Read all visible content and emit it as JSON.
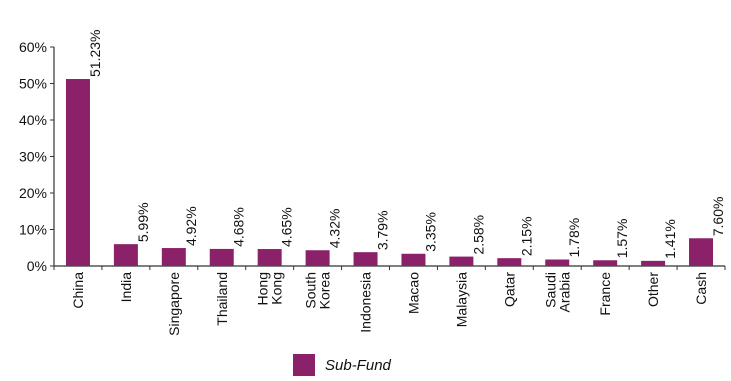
{
  "chart_data": {
    "type": "bar",
    "categories": [
      "China",
      "India",
      "Singapore",
      "Thailand",
      "Hong Kong",
      "South Korea",
      "Indonesia",
      "Macao",
      "Malaysia",
      "Qatar",
      "Saudi Arabia",
      "France",
      "Other",
      "Cash"
    ],
    "category_label_lines": [
      [
        "China"
      ],
      [
        "India"
      ],
      [
        "Singapore"
      ],
      [
        "Thailand"
      ],
      [
        "Hong",
        "Kong"
      ],
      [
        "South",
        "Korea"
      ],
      [
        "Indonesia"
      ],
      [
        "Macao"
      ],
      [
        "Malaysia"
      ],
      [
        "Qatar"
      ],
      [
        "Saudi",
        "Arabia"
      ],
      [
        "France"
      ],
      [
        "Other"
      ],
      [
        "Cash"
      ]
    ],
    "series": [
      {
        "name": "Sub-Fund",
        "values": [
          51.23,
          5.99,
          4.92,
          4.68,
          4.65,
          4.32,
          3.79,
          3.35,
          2.58,
          2.15,
          1.78,
          1.57,
          1.41,
          7.6
        ],
        "labels": [
          "51.23%",
          "5.99%",
          "4.92%",
          "4.68%",
          "4.65%",
          "4.32%",
          "3.79%",
          "3.35%",
          "2.58%",
          "2.15%",
          "1.78%",
          "1.57%",
          "1.41%",
          "7.60%"
        ]
      }
    ],
    "yticks": [
      0,
      10,
      20,
      30,
      40,
      50,
      60
    ],
    "ytick_labels": [
      "0%",
      "10%",
      "20%",
      "30%",
      "40%",
      "50%",
      "60%"
    ],
    "ylim": [
      0,
      60
    ],
    "title": "",
    "xlabel": "",
    "ylabel": "",
    "legend_position": "bottom-center",
    "grid": false,
    "colors": {
      "bar": "#8b2269",
      "axis": "#333333"
    }
  }
}
